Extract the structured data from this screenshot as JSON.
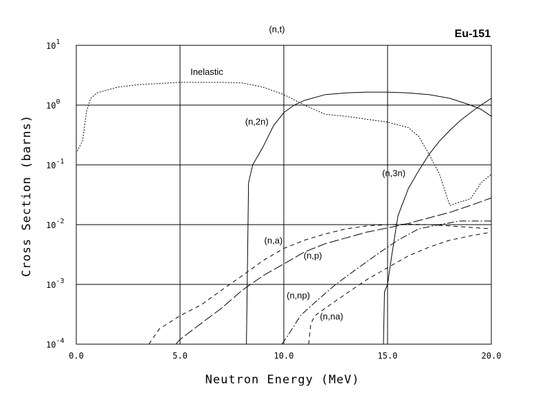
{
  "chart_data": {
    "type": "line",
    "title": "(n,t)",
    "nuclide": "Eu-151",
    "xlabel": "Neutron Energy (MeV)",
    "ylabel": "Cross Section (barns)",
    "xlim": [
      0,
      20
    ],
    "ylim": [
      0.0001,
      10
    ],
    "yscale": "log",
    "grid": true,
    "x_ticks": [
      "0.0",
      "5.0",
      "10.0",
      "15.0",
      "20.0"
    ],
    "y_tick_labels": [
      {
        "base": "10",
        "exp": "-4"
      },
      {
        "base": "10",
        "exp": "-3"
      },
      {
        "base": "10",
        "exp": "-2"
      },
      {
        "base": "10",
        "exp": "-1"
      },
      {
        "base": "10",
        "exp": "0"
      },
      {
        "base": "10",
        "exp": "1"
      }
    ],
    "series": [
      {
        "name": "Inelastic",
        "style": "dotted",
        "x": [
          0.05,
          0.15,
          0.3,
          0.5,
          0.7,
          1.0,
          2.0,
          3.0,
          4.0,
          5.0,
          6.0,
          7.0,
          8.0,
          9.0,
          10.0,
          11.0,
          12.0,
          13.0,
          14.0,
          15.0,
          16.0,
          16.5,
          17.0,
          17.5,
          18.0,
          18.5,
          19.0,
          19.5,
          20.0
        ],
        "y": [
          0.17,
          0.2,
          0.25,
          0.8,
          1.3,
          1.6,
          2.0,
          2.2,
          2.3,
          2.4,
          2.4,
          2.4,
          2.35,
          2.0,
          1.5,
          1.0,
          0.7,
          0.65,
          0.58,
          0.52,
          0.42,
          0.3,
          0.15,
          0.07,
          0.021,
          0.024,
          0.027,
          0.05,
          0.07
        ]
      },
      {
        "name": "(n,2n)",
        "style": "solid",
        "x": [
          8.2,
          8.3,
          8.5,
          9.0,
          9.5,
          10.0,
          10.5,
          11.0,
          12.0,
          13.0,
          14.0,
          15.0,
          16.0,
          17.0,
          18.0,
          19.0,
          19.5,
          20.0
        ],
        "y": [
          0.0001,
          0.05,
          0.1,
          0.2,
          0.45,
          0.75,
          1.0,
          1.2,
          1.5,
          1.6,
          1.65,
          1.65,
          1.6,
          1.5,
          1.3,
          1.0,
          0.85,
          0.65
        ]
      },
      {
        "name": "(n,3n)",
        "style": "solid",
        "x": [
          14.8,
          14.85,
          15.0,
          15.2,
          15.5,
          16.0,
          16.5,
          17.0,
          17.5,
          18.0,
          18.5,
          19.0,
          19.5,
          20.0
        ],
        "y": [
          0.0001,
          0.00075,
          0.001,
          0.003,
          0.014,
          0.04,
          0.08,
          0.15,
          0.25,
          0.38,
          0.55,
          0.75,
          1.0,
          1.3
        ]
      },
      {
        "name": "(n,a)",
        "style": "dashed",
        "x": [
          3.5,
          4.0,
          5.0,
          6.0,
          7.0,
          8.0,
          9.0,
          10.0,
          11.0,
          12.0,
          13.0,
          14.0,
          15.0,
          16.0,
          17.0,
          18.0,
          19.0,
          20.0
        ],
        "y": [
          0.0001,
          0.00018,
          0.0003,
          0.00045,
          0.0008,
          0.0014,
          0.0025,
          0.004,
          0.0055,
          0.007,
          0.0085,
          0.0095,
          0.01,
          0.0102,
          0.01,
          0.0095,
          0.009,
          0.0085
        ]
      },
      {
        "name": "(n,p)",
        "style": "longdash",
        "x": [
          4.8,
          5.0,
          6.0,
          7.0,
          8.0,
          9.0,
          10.0,
          11.0,
          12.0,
          13.0,
          14.0,
          15.0,
          16.0,
          17.0,
          18.0,
          19.0,
          20.0
        ],
        "y": [
          0.0001,
          0.00012,
          0.00022,
          0.0004,
          0.0008,
          0.0014,
          0.0022,
          0.0035,
          0.0048,
          0.006,
          0.0075,
          0.0088,
          0.0105,
          0.013,
          0.016,
          0.021,
          0.028
        ]
      },
      {
        "name": "(n,np)",
        "style": "dashdot",
        "x": [
          9.9,
          10.2,
          10.8,
          11.5,
          12.5,
          13.5,
          14.5,
          15.5,
          16.5,
          17.5,
          18.5,
          19.5,
          20.0
        ],
        "y": [
          0.0001,
          0.00014,
          0.0003,
          0.0005,
          0.001,
          0.0018,
          0.0032,
          0.0055,
          0.0085,
          0.01,
          0.0115,
          0.0115,
          0.0115
        ]
      },
      {
        "name": "(n,na)",
        "style": "dashed",
        "x": [
          11.2,
          11.3,
          11.5,
          12.0,
          13.0,
          14.0,
          15.0,
          16.0,
          17.0,
          18.0,
          19.0,
          20.0
        ],
        "y": [
          0.0001,
          0.00022,
          0.0003,
          0.0004,
          0.0007,
          0.0012,
          0.0019,
          0.003,
          0.0042,
          0.0055,
          0.0065,
          0.0075
        ]
      }
    ]
  }
}
